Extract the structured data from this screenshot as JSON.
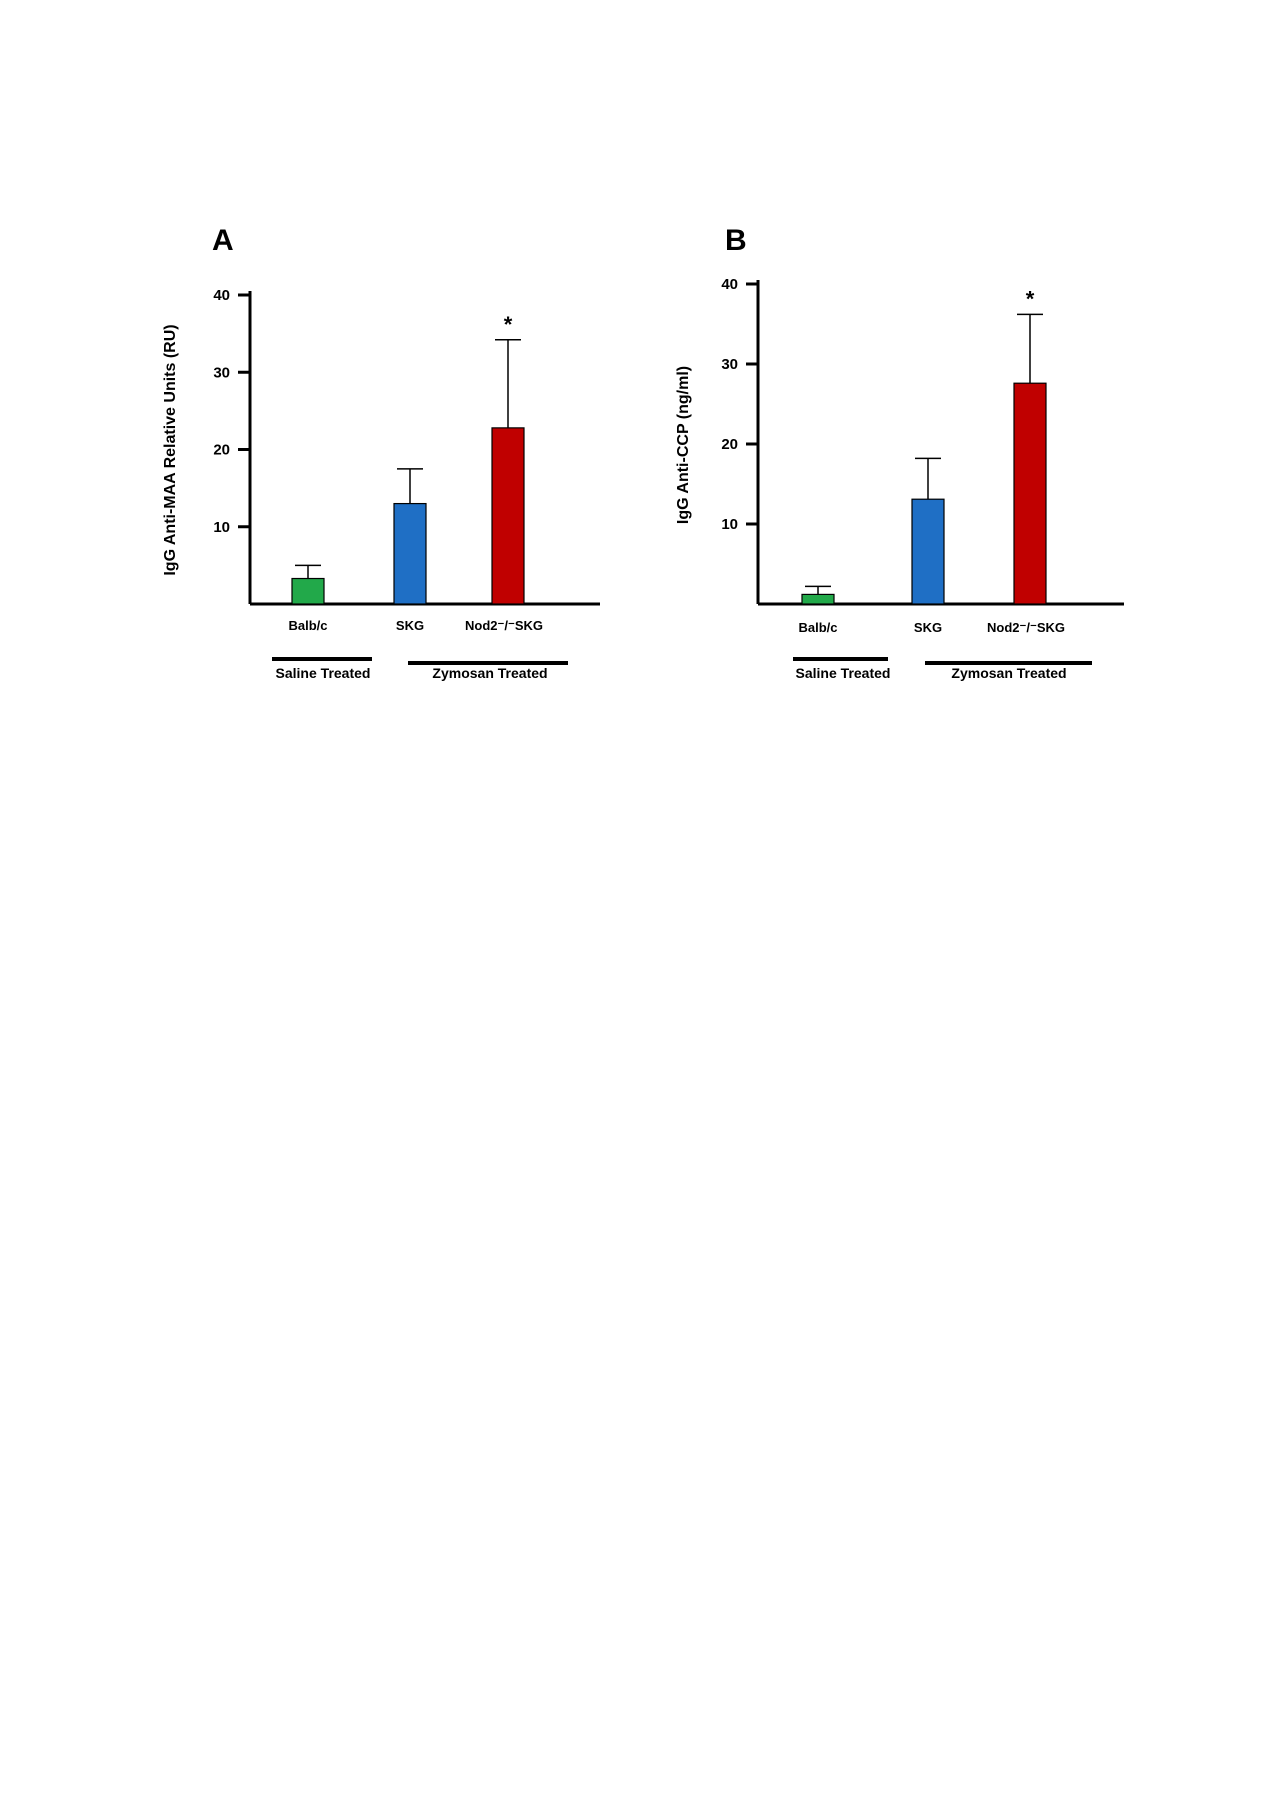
{
  "chart_data": [
    {
      "type": "bar",
      "panel": "A",
      "ylabel": "IgG Anti-MAA  Relative Units (RU)",
      "ylim": [
        0,
        40
      ],
      "yticks": [
        10,
        20,
        30,
        40
      ],
      "categories": [
        "Balb/c",
        "SKG",
        "Nod2-/-SKG"
      ],
      "category_display": [
        "Balb/c",
        "SKG",
        "Nod2⁻/⁻SKG"
      ],
      "values": [
        3.3,
        13.0,
        22.8
      ],
      "errors": [
        1.7,
        4.5,
        11.4
      ],
      "colors": [
        "#22a94a",
        "#1f6fc5",
        "#c00000"
      ],
      "significance": [
        "",
        "",
        "*"
      ],
      "groups": [
        {
          "label": "Saline Treated",
          "span": [
            0,
            0
          ]
        },
        {
          "label": "Zymosan Treated",
          "span": [
            1,
            2
          ]
        }
      ]
    },
    {
      "type": "bar",
      "panel": "B",
      "ylabel": "IgG Anti-CCP  (ng/ml)",
      "ylim": [
        0,
        40
      ],
      "yticks": [
        10,
        20,
        30,
        40
      ],
      "categories": [
        "Balb/c",
        "SKG",
        "Nod2-/-SKG"
      ],
      "category_display": [
        "Balb/c",
        "SKG",
        "Nod2⁻/⁻SKG"
      ],
      "values": [
        1.2,
        13.1,
        27.6
      ],
      "errors": [
        1.0,
        5.1,
        8.6
      ],
      "colors": [
        "#22a94a",
        "#1f6fc5",
        "#c00000"
      ],
      "significance": [
        "",
        "",
        "*"
      ],
      "groups": [
        {
          "label": "Saline Treated",
          "span": [
            0,
            0
          ]
        },
        {
          "label": "Zymosan Treated",
          "span": [
            1,
            2
          ]
        }
      ]
    }
  ]
}
